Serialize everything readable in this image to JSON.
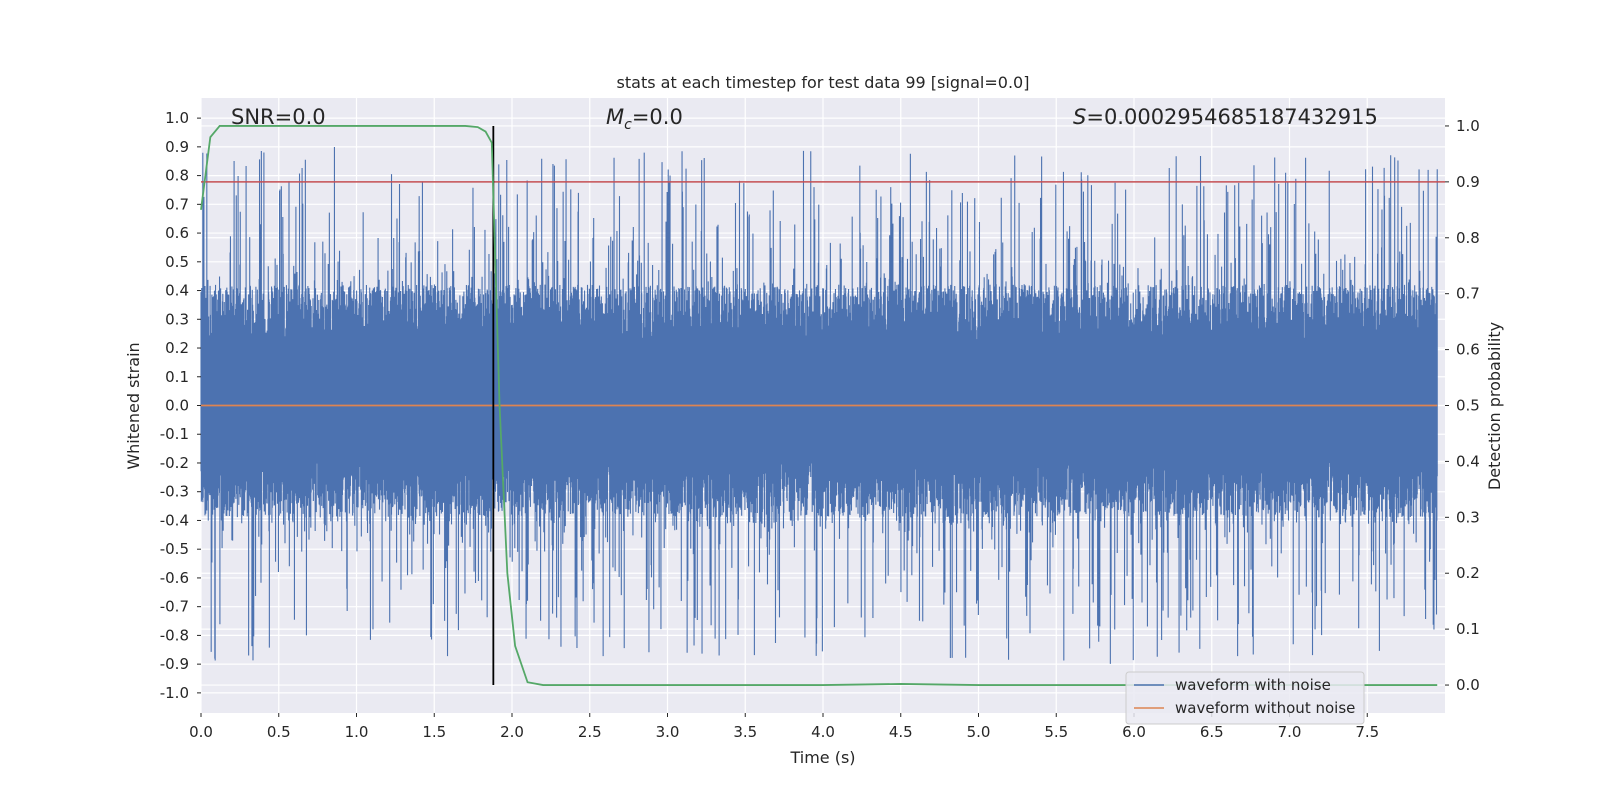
{
  "chart_data": {
    "type": "line",
    "title": "stats at each timestep for test data 99 [signal=0.0]",
    "xlabel": "Time (s)",
    "ylabel": "Whitened strain",
    "y2label": "Detection probability",
    "xlim": [
      0.0,
      8.0
    ],
    "ylim": [
      -1.07,
      1.07
    ],
    "y2lim": [
      -0.05,
      1.05
    ],
    "x_ticks": [
      0.0,
      0.5,
      1.0,
      1.5,
      2.0,
      2.5,
      3.0,
      3.5,
      4.0,
      4.5,
      5.0,
      5.5,
      6.0,
      6.5,
      7.0,
      7.5
    ],
    "x_tick_labels": [
      "0.0",
      "0.5",
      "1.0",
      "1.5",
      "2.0",
      "2.5",
      "3.0",
      "3.5",
      "4.0",
      "4.5",
      "5.0",
      "5.5",
      "6.0",
      "6.5",
      "7.0",
      "7.5"
    ],
    "y_ticks": [
      1.0,
      0.9,
      0.8,
      0.7,
      0.6,
      0.5,
      0.4,
      0.3,
      0.2,
      0.1,
      0.0,
      -0.1,
      -0.2,
      -0.3,
      -0.4,
      -0.5,
      -0.6,
      -0.7,
      -0.8,
      -0.9,
      -1.0
    ],
    "y_tick_labels": [
      "1.0",
      "0.9",
      "0.8",
      "0.7",
      "0.6",
      "0.5",
      "0.4",
      "0.3",
      "0.2",
      "0.1",
      "0.0",
      "-0.1",
      "-0.2",
      "-0.3",
      "-0.4",
      "-0.5",
      "-0.6",
      "-0.7",
      "-0.8",
      "-0.9",
      "-1.0"
    ],
    "y2_ticks": [
      1.0,
      0.9,
      0.8,
      0.7,
      0.6,
      0.5,
      0.4,
      0.3,
      0.2,
      0.1,
      0.0
    ],
    "y2_tick_labels": [
      "1.0",
      "0.9",
      "0.8",
      "0.7",
      "0.6",
      "0.5",
      "0.4",
      "0.3",
      "0.2",
      "0.1",
      "0.0"
    ],
    "annotations": {
      "snr": "SNR=0.0",
      "mc_symbol": "M",
      "mc_subscript": "c",
      "mc_value": "=0.0",
      "s_symbol": "S",
      "s_value": "=0.0002954685187432915"
    },
    "threshold": {
      "axis": "y2",
      "value": 0.9,
      "color": "#c44e52"
    },
    "vertical_marker": {
      "x": 1.88,
      "color": "#000000"
    },
    "series": [
      {
        "name": "waveform with noise",
        "color": "#4c72b0",
        "kind": "noise",
        "amplitude_typical": 0.4,
        "amplitude_max": 1.0,
        "x_range": [
          0.0,
          7.95
        ]
      },
      {
        "name": "waveform without noise",
        "color": "#dd8452",
        "kind": "constant",
        "value": 0.0,
        "x_range": [
          0.0,
          7.95
        ]
      },
      {
        "name": "detection probability",
        "color": "#55a868",
        "axis": "y2",
        "x": [
          0.0,
          0.06,
          0.12,
          0.25,
          0.5,
          1.0,
          1.5,
          1.7,
          1.78,
          1.83,
          1.87,
          1.92,
          1.97,
          2.02,
          2.1,
          2.2,
          3.0,
          4.0,
          4.5,
          5.0,
          6.0,
          7.0,
          7.95
        ],
        "y": [
          0.85,
          0.98,
          1.0,
          1.0,
          1.0,
          1.0,
          1.0,
          1.0,
          0.998,
          0.99,
          0.97,
          0.5,
          0.2,
          0.07,
          0.005,
          0.0,
          0.0,
          0.0,
          0.002,
          0.0,
          0.0,
          0.0,
          0.0
        ]
      }
    ],
    "legend": {
      "location": "lower-right",
      "entries": [
        "waveform with noise",
        "waveform without noise"
      ]
    }
  }
}
